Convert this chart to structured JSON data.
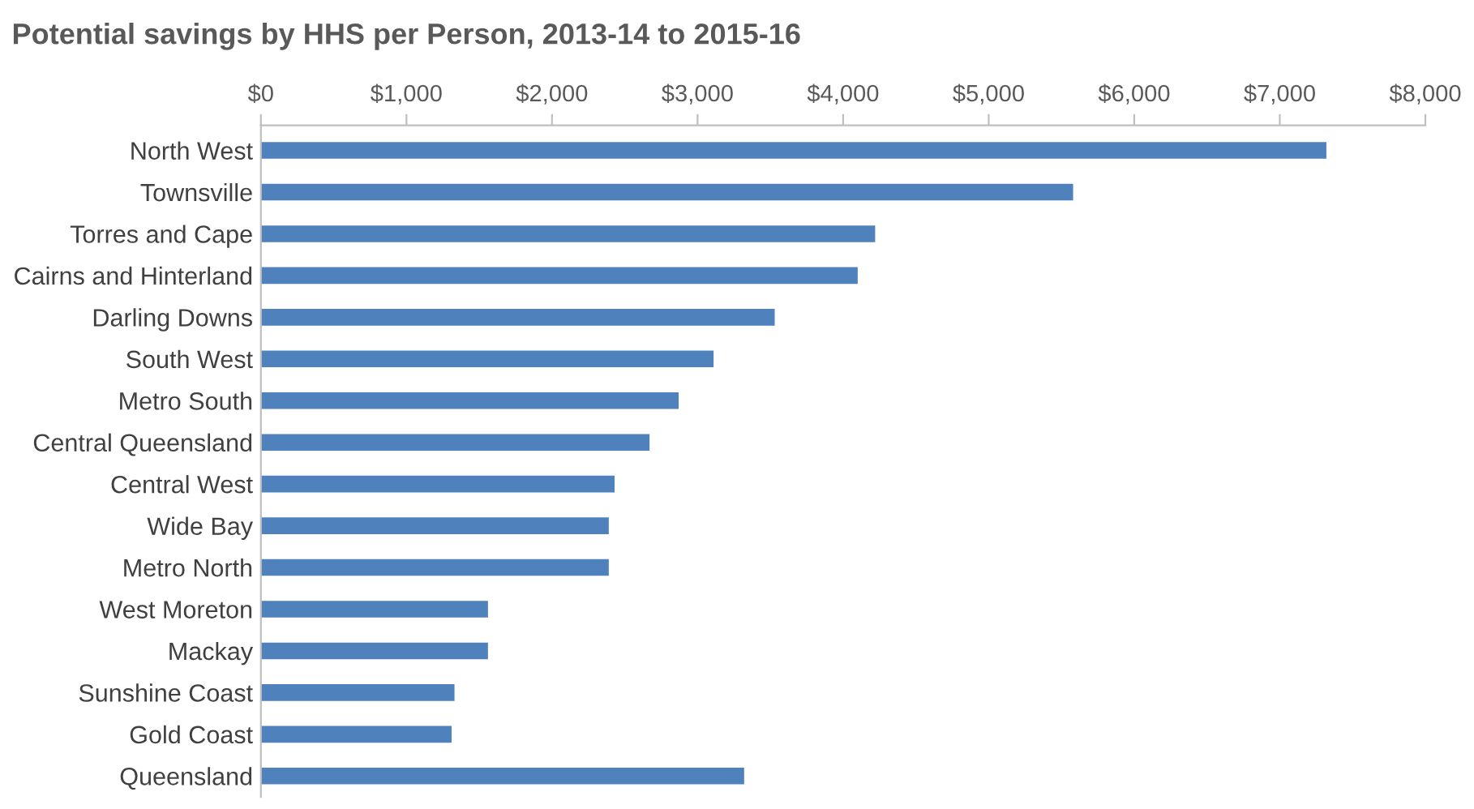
{
  "chart_data": {
    "type": "bar",
    "orientation": "horizontal",
    "title": "Potential savings by HHS per Person, 2013-14 to 2015-16",
    "categories": [
      "North West",
      "Townsville",
      "Torres and Cape",
      "Cairns and Hinterland",
      "Darling Downs",
      "South West",
      "Metro South",
      "Central Queensland",
      "Central West",
      "Wide Bay",
      "Metro North",
      "West Moreton",
      "Mackay",
      "Sunshine Coast",
      "Gold Coast",
      "Queensland"
    ],
    "values": [
      7320,
      5580,
      4220,
      4100,
      3530,
      3110,
      2870,
      2670,
      2430,
      2390,
      2390,
      1560,
      1560,
      1330,
      1310,
      3320
    ],
    "color": "#4f81bd",
    "xlim": [
      0,
      8000
    ],
    "xticks": [
      {
        "value": 0,
        "label": "$0"
      },
      {
        "value": 1000,
        "label": "$1,000"
      },
      {
        "value": 2000,
        "label": "$2,000"
      },
      {
        "value": 3000,
        "label": "$3,000"
      },
      {
        "value": 4000,
        "label": "$4,000"
      },
      {
        "value": 5000,
        "label": "$5,000"
      },
      {
        "value": 6000,
        "label": "$6,000"
      },
      {
        "value": 7000,
        "label": "$7,000"
      },
      {
        "value": 8000,
        "label": "$8,000"
      }
    ],
    "grid": false,
    "legend": false
  }
}
